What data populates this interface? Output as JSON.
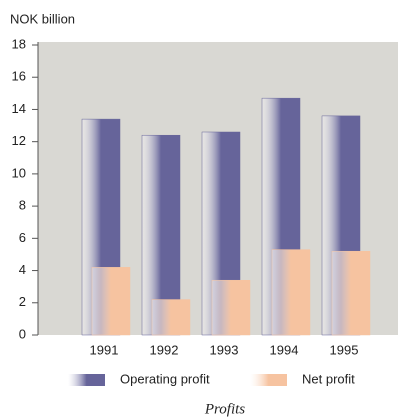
{
  "chart_data": {
    "type": "bar",
    "title": "Profits",
    "y_label": "NOK billion",
    "categories": [
      "1991",
      "1992",
      "1993",
      "1994",
      "1995"
    ],
    "series": [
      {
        "name": "Operating profit",
        "color": "#66649a",
        "values": [
          13.4,
          12.4,
          12.6,
          14.7,
          13.6
        ]
      },
      {
        "name": "Net profit",
        "color": "#f6c3a0",
        "values": [
          4.2,
          2.2,
          3.4,
          5.3,
          5.2
        ]
      }
    ],
    "ylim": [
      0,
      18
    ],
    "yticks": [
      0,
      2,
      4,
      6,
      8,
      10,
      12,
      14,
      16,
      18
    ],
    "grid": false
  }
}
